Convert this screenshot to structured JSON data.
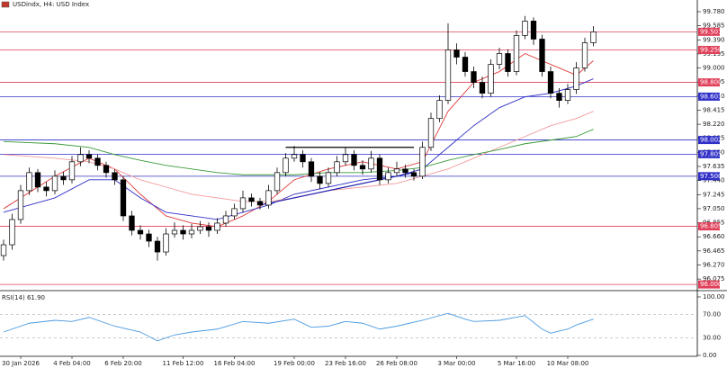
{
  "chart_data": {
    "type": "candlestick",
    "title": "USDindx, H4:  USD Index",
    "ylim": [
      95.927,
      99.917
    ],
    "yticks": [
      {
        "value": 99.78,
        "label": "99.780"
      },
      {
        "value": 99.585,
        "label": "99.585"
      },
      {
        "value": 99.39,
        "label": "99.390"
      },
      {
        "value": 99.195,
        "label": "99.195"
      },
      {
        "value": 99,
        "label": "99.000"
      },
      {
        "value": 98.805,
        "label": "98.805"
      },
      {
        "value": 98.61,
        "label": "98.610"
      },
      {
        "value": 98.415,
        "label": "98.415"
      },
      {
        "value": 98.22,
        "label": "98.220"
      },
      {
        "value": 98.025,
        "label": "98.025"
      },
      {
        "value": 97.83,
        "label": "97.830"
      },
      {
        "value": 97.635,
        "label": "97.635"
      },
      {
        "value": 97.44,
        "label": "97.440"
      },
      {
        "value": 97.245,
        "label": "97.245"
      },
      {
        "value": 97.05,
        "label": "97.050"
      },
      {
        "value": 96.855,
        "label": "96.855"
      },
      {
        "value": 96.66,
        "label": "96.660"
      },
      {
        "value": 96.465,
        "label": "96.465"
      },
      {
        "value": 96.27,
        "label": "96.270"
      },
      {
        "value": 96.075,
        "label": "96.075"
      }
    ],
    "xticks": [
      {
        "value": 2,
        "label": "30 Jan 2026"
      },
      {
        "value": 8,
        "label": "4 Feb 04:00"
      },
      {
        "value": 14,
        "label": "6 Feb 20:00"
      },
      {
        "value": 21,
        "label": "11 Feb 12:00"
      },
      {
        "value": 27,
        "label": "16 Feb 04:00"
      },
      {
        "value": 34,
        "label": "19 Feb 00:00"
      },
      {
        "value": 40,
        "label": "23 Feb 16:00"
      },
      {
        "value": 46,
        "label": "26 Feb 08:00"
      },
      {
        "value": 53,
        "label": "3 Mar 00:00"
      },
      {
        "value": 60,
        "label": "5 Mar 16:00"
      },
      {
        "value": 66,
        "label": "10 Mar 08:00"
      }
    ],
    "levels": [
      {
        "value": 99.501,
        "label": "99.501",
        "color": "#e0405a"
      },
      {
        "value": 99.25,
        "label": "99.250",
        "color": "#e0405a"
      },
      {
        "value": 98.8,
        "label": "98.800",
        "color": "#e0405a"
      },
      {
        "value": 98.603,
        "label": "98.603",
        "color": "#3030c8"
      },
      {
        "value": 98.002,
        "label": "98.002",
        "color": "#3030c8"
      },
      {
        "value": 97.805,
        "label": "97.805",
        "color": "#3030c8"
      },
      {
        "value": 97.5,
        "label": "97.500",
        "color": "#3030c8"
      },
      {
        "value": 96.805,
        "label": "96.805",
        "color": "#e0405a"
      },
      {
        "value": 96,
        "label": "96.000",
        "color": "#e0405a"
      }
    ],
    "candles": [
      [
        96.4,
        96.62,
        96.33,
        96.55
      ],
      [
        96.55,
        96.98,
        96.48,
        96.9
      ],
      [
        96.9,
        97.38,
        96.84,
        97.3
      ],
      [
        97.3,
        97.62,
        97.24,
        97.55
      ],
      [
        97.55,
        97.6,
        97.28,
        97.35
      ],
      [
        97.35,
        97.42,
        97.22,
        97.3
      ],
      [
        97.3,
        97.58,
        97.25,
        97.5
      ],
      [
        97.5,
        97.56,
        97.38,
        97.45
      ],
      [
        97.45,
        97.78,
        97.4,
        97.7
      ],
      [
        97.7,
        97.9,
        97.64,
        97.8
      ],
      [
        97.8,
        97.86,
        97.68,
        97.75
      ],
      [
        97.75,
        97.8,
        97.58,
        97.65
      ],
      [
        97.65,
        97.7,
        97.48,
        97.55
      ],
      [
        97.55,
        97.6,
        97.38,
        97.45
      ],
      [
        97.45,
        97.5,
        96.88,
        96.95
      ],
      [
        96.95,
        97.02,
        96.68,
        96.75
      ],
      [
        96.75,
        96.82,
        96.62,
        96.7
      ],
      [
        96.7,
        96.76,
        96.52,
        96.6
      ],
      [
        96.6,
        96.66,
        96.33,
        96.45
      ],
      [
        96.45,
        96.78,
        96.4,
        96.7
      ],
      [
        96.7,
        96.86,
        96.65,
        96.75
      ],
      [
        96.75,
        96.82,
        96.62,
        96.7
      ],
      [
        96.7,
        96.84,
        96.64,
        96.75
      ],
      [
        96.75,
        96.88,
        96.7,
        96.8
      ],
      [
        96.8,
        96.86,
        96.66,
        96.75
      ],
      [
        96.75,
        96.92,
        96.7,
        96.85
      ],
      [
        96.85,
        97.02,
        96.8,
        96.95
      ],
      [
        96.95,
        97.12,
        96.9,
        97.05
      ],
      [
        97.05,
        97.3,
        97.0,
        97.2
      ],
      [
        97.2,
        97.26,
        97.08,
        97.15
      ],
      [
        97.15,
        97.2,
        97.04,
        97.1
      ],
      [
        97.1,
        97.38,
        97.05,
        97.3
      ],
      [
        97.3,
        97.62,
        97.25,
        97.55
      ],
      [
        97.55,
        97.82,
        97.5,
        97.75
      ],
      [
        97.75,
        97.92,
        97.7,
        97.8
      ],
      [
        97.8,
        97.86,
        97.62,
        97.7
      ],
      [
        97.7,
        97.75,
        97.42,
        97.5
      ],
      [
        97.5,
        97.56,
        97.32,
        97.4
      ],
      [
        97.4,
        97.62,
        97.35,
        97.55
      ],
      [
        97.55,
        97.78,
        97.5,
        97.7
      ],
      [
        97.7,
        97.9,
        97.65,
        97.8
      ],
      [
        97.8,
        97.86,
        97.58,
        97.65
      ],
      [
        97.65,
        97.72,
        97.52,
        97.6
      ],
      [
        97.6,
        97.85,
        97.55,
        97.75
      ],
      [
        97.75,
        97.8,
        97.38,
        97.45
      ],
      [
        97.45,
        97.62,
        97.4,
        97.55
      ],
      [
        97.55,
        97.7,
        97.5,
        97.6
      ],
      [
        97.6,
        97.66,
        97.48,
        97.55
      ],
      [
        97.55,
        97.6,
        97.44,
        97.5
      ],
      [
        97.5,
        97.98,
        97.46,
        97.9
      ],
      [
        97.9,
        98.38,
        97.85,
        98.3
      ],
      [
        98.3,
        98.62,
        98.25,
        98.55
      ],
      [
        98.55,
        99.62,
        98.5,
        99.25
      ],
      [
        99.25,
        99.34,
        99.05,
        99.15
      ],
      [
        99.15,
        99.22,
        98.88,
        98.95
      ],
      [
        98.95,
        99.02,
        98.72,
        98.8
      ],
      [
        98.8,
        98.88,
        98.58,
        98.65
      ],
      [
        98.65,
        99.12,
        98.6,
        99.05
      ],
      [
        99.05,
        99.28,
        98.98,
        99.2
      ],
      [
        99.2,
        99.26,
        98.88,
        98.95
      ],
      [
        98.95,
        99.52,
        98.9,
        99.45
      ],
      [
        99.45,
        99.72,
        99.4,
        99.65
      ],
      [
        99.65,
        99.7,
        99.32,
        99.4
      ],
      [
        99.4,
        99.46,
        98.88,
        98.95
      ],
      [
        98.95,
        99.02,
        98.58,
        98.65
      ],
      [
        98.65,
        98.72,
        98.45,
        98.55
      ],
      [
        98.55,
        98.78,
        98.5,
        98.7
      ],
      [
        98.7,
        99.08,
        98.64,
        99.0
      ],
      [
        99.0,
        99.42,
        98.95,
        99.35
      ],
      [
        99.35,
        99.58,
        99.3,
        99.5
      ]
    ],
    "series": [
      {
        "color": "#e03a3a",
        "x": [
          0,
          6,
          10,
          13,
          16,
          19,
          22,
          25,
          28,
          31,
          34,
          38,
          42,
          46,
          49,
          52,
          55,
          58,
          61,
          64,
          67,
          69
        ],
        "values": [
          97.05,
          97.5,
          97.75,
          97.6,
          97.25,
          96.95,
          96.85,
          96.8,
          96.95,
          97.15,
          97.45,
          97.6,
          97.7,
          97.6,
          97.7,
          98.4,
          98.8,
          98.95,
          99.2,
          99.05,
          98.9,
          99.1
        ]
      },
      {
        "color": "#3030c8",
        "x": [
          0,
          6,
          10,
          13,
          16,
          19,
          22,
          25,
          28,
          31,
          34,
          38,
          42,
          46,
          49,
          52,
          55,
          58,
          61,
          64,
          67,
          69
        ],
        "values": [
          97.0,
          97.2,
          97.45,
          97.45,
          97.2,
          97.0,
          96.95,
          96.9,
          97.0,
          97.1,
          97.25,
          97.35,
          97.45,
          97.5,
          97.6,
          97.9,
          98.2,
          98.45,
          98.6,
          98.65,
          98.75,
          98.85
        ]
      },
      {
        "color": "#f29a9a",
        "x": [
          0,
          6,
          10,
          13,
          16,
          19,
          22,
          25,
          28,
          31,
          34,
          38,
          42,
          46,
          49,
          52,
          55,
          58,
          61,
          64,
          67,
          69
        ],
        "values": [
          97.8,
          97.75,
          97.7,
          97.6,
          97.45,
          97.35,
          97.25,
          97.2,
          97.15,
          97.15,
          97.2,
          97.3,
          97.35,
          97.4,
          97.5,
          97.6,
          97.75,
          97.9,
          98.05,
          98.2,
          98.3,
          98.4
        ]
      },
      {
        "color": "#3a9a3a",
        "x": [
          0,
          6,
          10,
          13,
          16,
          19,
          22,
          25,
          28,
          31,
          34,
          38,
          42,
          46,
          49,
          52,
          55,
          58,
          61,
          64,
          67,
          69
        ],
        "values": [
          97.98,
          97.95,
          97.9,
          97.8,
          97.72,
          97.65,
          97.6,
          97.55,
          97.52,
          97.52,
          97.52,
          97.55,
          97.55,
          97.58,
          97.62,
          97.72,
          97.8,
          97.87,
          97.95,
          98.0,
          98.05,
          98.15
        ]
      }
    ],
    "trendlines": [
      {
        "color": "#000000",
        "x": [
          33,
          48
        ],
        "values": [
          97.9,
          97.9
        ]
      },
      {
        "color": "#2020b0",
        "x": [
          30,
          48
        ],
        "values": [
          97.1,
          97.55
        ]
      }
    ],
    "rsi": {
      "label": "RSI(14) 61.90",
      "color": "#4a9ae0",
      "ylim": [
        0,
        100
      ],
      "yticks": [
        {
          "value": 100,
          "label": "100.00"
        },
        {
          "value": 70,
          "label": "70.00"
        },
        {
          "value": 30,
          "label": "30.00"
        },
        {
          "value": 0,
          "label": "0.00"
        }
      ],
      "x": [
        0,
        3,
        6,
        8,
        10,
        13,
        16,
        18,
        20,
        22,
        25,
        28,
        31,
        34,
        36,
        38,
        40,
        42,
        44,
        46,
        49,
        52,
        54,
        55,
        58,
        61,
        63,
        64,
        66,
        67,
        69
      ],
      "values": [
        40,
        55,
        60,
        58,
        65,
        50,
        40,
        25,
        35,
        40,
        45,
        58,
        55,
        62,
        48,
        50,
        58,
        55,
        45,
        50,
        60,
        72,
        62,
        58,
        60,
        68,
        45,
        38,
        45,
        52,
        62
      ]
    }
  }
}
